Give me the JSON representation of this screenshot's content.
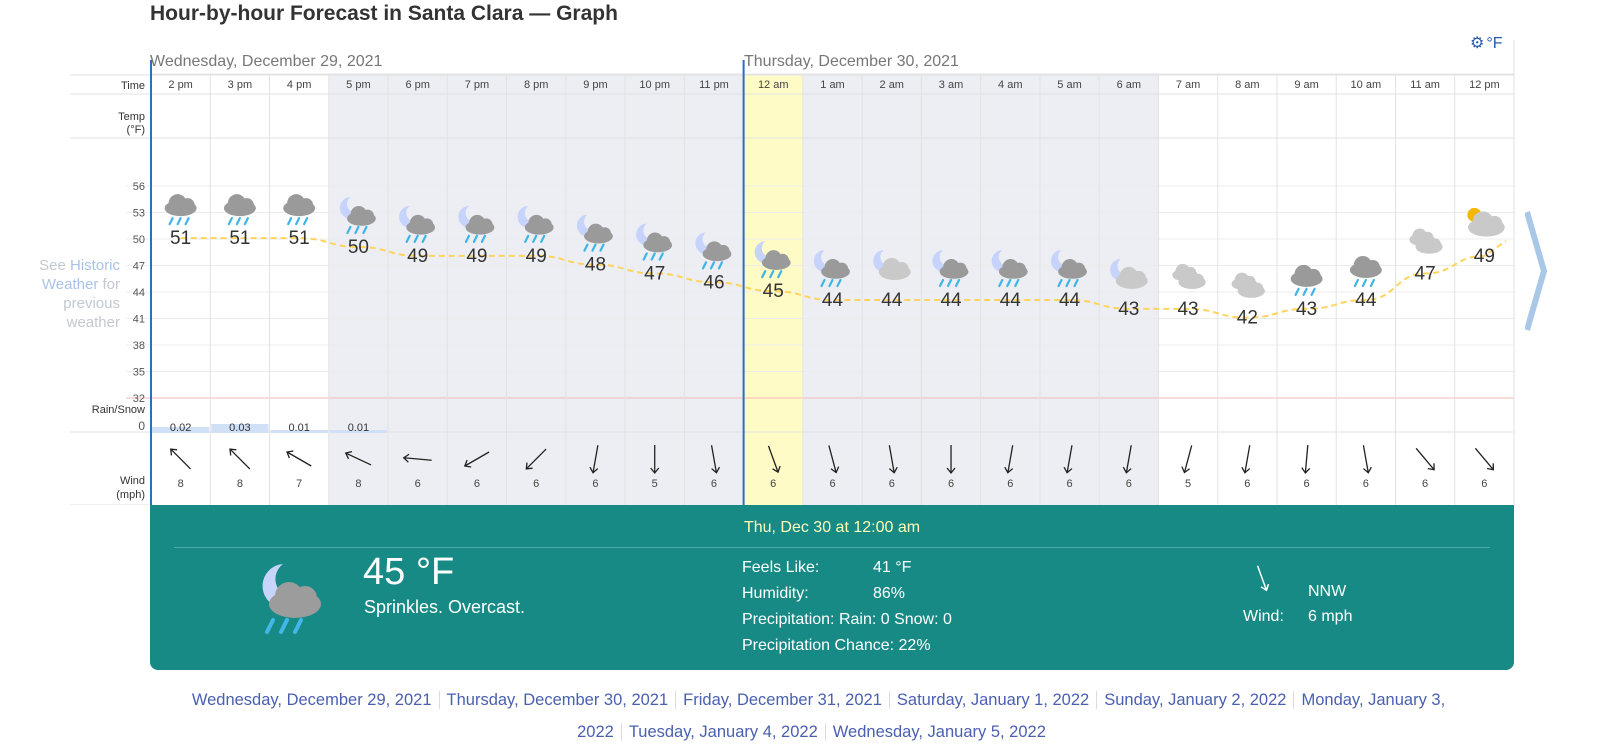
{
  "title": "Hour-by-hour Forecast in Santa Clara — Graph",
  "units": {
    "icon": "gear-icon",
    "label": "°F"
  },
  "days": [
    "Wednesday, December 29, 2021",
    "Thursday, December 30, 2021"
  ],
  "row_labels": {
    "time": "Time",
    "temp": "Temp",
    "temp_unit": "(°F)",
    "rain": "Rain/Snow",
    "wind": "Wind",
    "wind_unit": "(mph)"
  },
  "temp_ticks": [
    "56",
    "53",
    "50",
    "47",
    "44",
    "41",
    "38",
    "35",
    "32"
  ],
  "rain_zero": "0",
  "side_note": {
    "pre": "See ",
    "link": "Historic Weather",
    "post": " for previous weather"
  },
  "hours": [
    {
      "time": "2 pm",
      "temp": "51",
      "icon": "rain",
      "rain": "0.02",
      "wind": "8",
      "wdir": 135
    },
    {
      "time": "3 pm",
      "temp": "51",
      "icon": "rain",
      "rain": "0.03",
      "wind": "8",
      "wdir": 135
    },
    {
      "time": "4 pm",
      "temp": "51",
      "icon": "rain",
      "rain": "0.01",
      "wind": "7",
      "wdir": 120
    },
    {
      "time": "5 pm",
      "temp": "50",
      "icon": "moon-rain",
      "rain": "0.01",
      "wind": "8",
      "wdir": 115
    },
    {
      "time": "6 pm",
      "temp": "49",
      "icon": "moon-rain",
      "rain": "",
      "wind": "6",
      "wdir": 95
    },
    {
      "time": "7 pm",
      "temp": "49",
      "icon": "moon-rain",
      "rain": "",
      "wind": "6",
      "wdir": 60
    },
    {
      "time": "8 pm",
      "temp": "49",
      "icon": "moon-rain",
      "rain": "",
      "wind": "6",
      "wdir": 45
    },
    {
      "time": "9 pm",
      "temp": "48",
      "icon": "moon-rain",
      "rain": "",
      "wind": "6",
      "wdir": 10
    },
    {
      "time": "10 pm",
      "temp": "47",
      "icon": "moon-rain",
      "rain": "",
      "wind": "5",
      "wdir": 0
    },
    {
      "time": "11 pm",
      "temp": "46",
      "icon": "moon-rain",
      "rain": "",
      "wind": "6",
      "wdir": 350
    },
    {
      "time": "12 am",
      "temp": "45",
      "icon": "moon-rain",
      "rain": "",
      "wind": "6",
      "wdir": 340
    },
    {
      "time": "1 am",
      "temp": "44",
      "icon": "moon-rain",
      "rain": "",
      "wind": "6",
      "wdir": 345
    },
    {
      "time": "2 am",
      "temp": "44",
      "icon": "moon-cloud",
      "rain": "",
      "wind": "6",
      "wdir": 350
    },
    {
      "time": "3 am",
      "temp": "44",
      "icon": "moon-rain",
      "rain": "",
      "wind": "6",
      "wdir": 0
    },
    {
      "time": "4 am",
      "temp": "44",
      "icon": "moon-rain",
      "rain": "",
      "wind": "6",
      "wdir": 10
    },
    {
      "time": "5 am",
      "temp": "44",
      "icon": "moon-rain",
      "rain": "",
      "wind": "6",
      "wdir": 10
    },
    {
      "time": "6 am",
      "temp": "43",
      "icon": "moon-cloud",
      "rain": "",
      "wind": "6",
      "wdir": 10
    },
    {
      "time": "7 am",
      "temp": "43",
      "icon": "clouds",
      "rain": "",
      "wind": "5",
      "wdir": 15
    },
    {
      "time": "8 am",
      "temp": "42",
      "icon": "clouds",
      "rain": "",
      "wind": "6",
      "wdir": 10
    },
    {
      "time": "9 am",
      "temp": "43",
      "icon": "rain",
      "rain": "",
      "wind": "6",
      "wdir": 5
    },
    {
      "time": "10 am",
      "temp": "44",
      "icon": "rain",
      "rain": "",
      "wind": "6",
      "wdir": 350
    },
    {
      "time": "11 am",
      "temp": "47",
      "icon": "clouds",
      "rain": "",
      "wind": "6",
      "wdir": 320
    },
    {
      "time": "12 pm",
      "temp": "49",
      "icon": "sun-cloud",
      "rain": "",
      "wind": "6",
      "wdir": 320
    }
  ],
  "selected": {
    "title": "Thu, Dec 30 at 12:00 am",
    "temp": "45 °F",
    "condition": "Sprinkles. Overcast.",
    "feels_label": "Feels Like:",
    "feels": "41 °F",
    "humidity_label": "Humidity:",
    "humidity": "86%",
    "precip": "Precipitation: Rain: 0 Snow: 0",
    "chance": "Precipitation Chance: 22%",
    "wind_dir": "NNW",
    "wind_label": "Wind:",
    "wind": "6 mph"
  },
  "day_links": [
    "Wednesday, December 29, 2021",
    "Thursday, December 30, 2021",
    "Friday, December 31, 2021",
    "Saturday, January 1, 2022",
    "Sunday, January 2, 2022",
    "Monday, January 3, 2022",
    "Tuesday, January 4, 2022",
    "Wednesday, January 5, 2022"
  ],
  "colors": {
    "teal": "#178a86",
    "night": "#eceef3",
    "highlight": "#fffbc6",
    "temp_line": "#ffd35c",
    "link": "#4a5fb0"
  }
}
